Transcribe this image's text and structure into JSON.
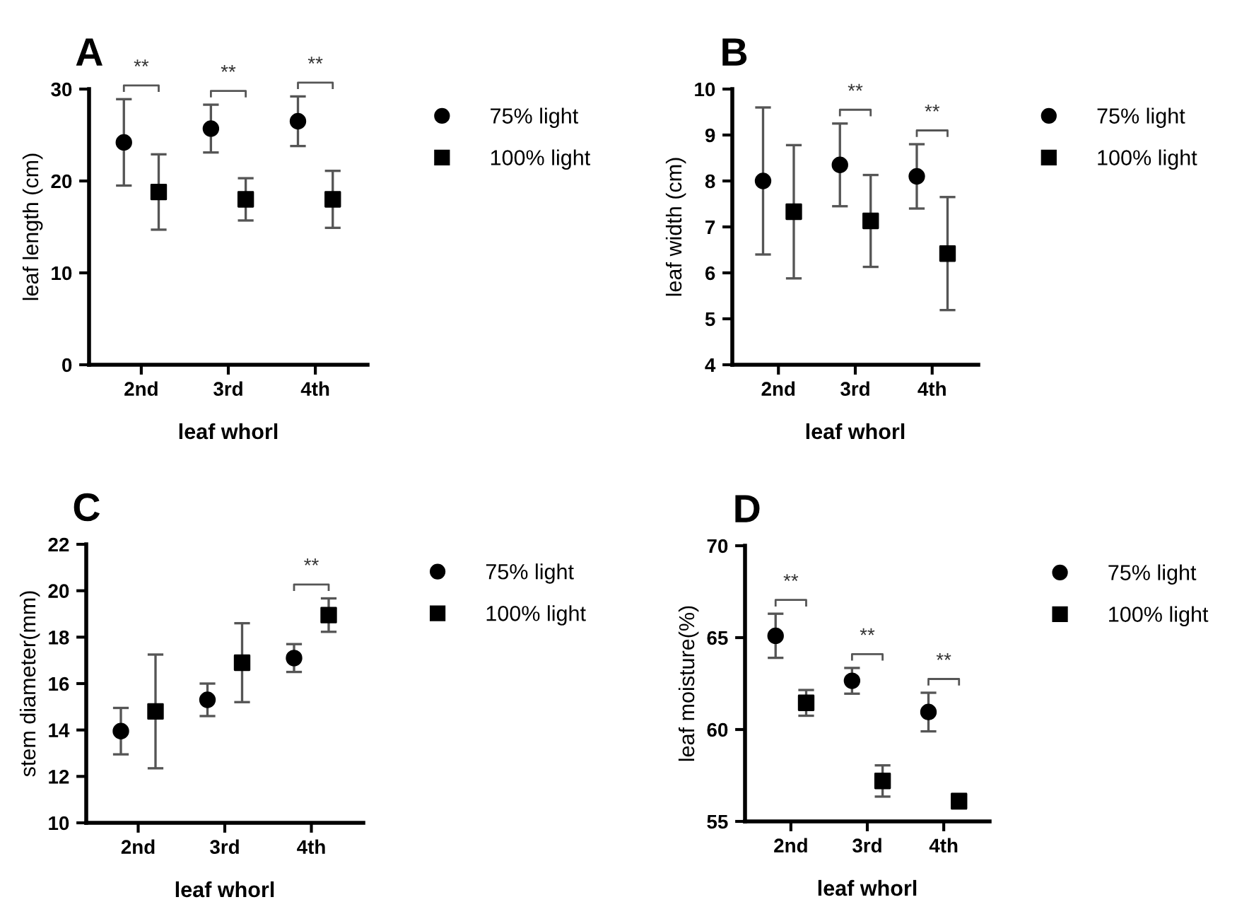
{
  "chart_data": [
    {
      "type": "scatter",
      "title": "A",
      "xlabel": "leaf whorl",
      "ylabel": "leaf length (cm)",
      "categories": [
        "2nd",
        "3rd",
        "4th"
      ],
      "ylim": [
        0,
        30
      ],
      "yticks": [
        0,
        10,
        20,
        30
      ],
      "legend": "right",
      "grid": false,
      "series": [
        {
          "name": "75% light",
          "color": "#000000",
          "marker": "circle",
          "values": [
            24.2,
            25.7,
            26.5
          ],
          "errors": [
            4.7,
            2.6,
            2.7
          ]
        },
        {
          "name": "100% light",
          "color": "#000000",
          "marker": "square",
          "values": [
            18.8,
            18.0,
            18.0
          ],
          "errors": [
            4.1,
            2.3,
            3.1
          ]
        }
      ],
      "annotations": [
        "**",
        "**",
        "**"
      ]
    },
    {
      "type": "scatter",
      "title": "B",
      "xlabel": "leaf whorl",
      "ylabel": "leaf width (cm)",
      "categories": [
        "2nd",
        "3rd",
        "4th"
      ],
      "ylim": [
        4,
        10
      ],
      "yticks": [
        4,
        5,
        6,
        7,
        8,
        9,
        10
      ],
      "legend": "right",
      "grid": false,
      "series": [
        {
          "name": "75% light",
          "color": "#000000",
          "marker": "circle",
          "values": [
            8.0,
            8.35,
            8.1
          ],
          "errors": [
            1.6,
            0.9,
            0.7
          ]
        },
        {
          "name": "100% light",
          "color": "#000000",
          "marker": "square",
          "values": [
            7.33,
            7.13,
            6.42
          ],
          "errors": [
            1.45,
            1.0,
            1.23
          ]
        }
      ],
      "annotations": [
        "**",
        "**"
      ]
    },
    {
      "type": "scatter",
      "title": "C",
      "xlabel": "leaf whorl",
      "ylabel": "stem diameter(mm)",
      "categories": [
        "2nd",
        "3rd",
        "4th"
      ],
      "ylim": [
        10,
        22
      ],
      "yticks": [
        10,
        12,
        14,
        16,
        18,
        20,
        22
      ],
      "legend": "right",
      "grid": false,
      "series": [
        {
          "name": "75% light",
          "color": "#000000",
          "marker": "circle",
          "values": [
            13.95,
            15.3,
            17.1
          ],
          "errors": [
            1.0,
            0.7,
            0.6
          ]
        },
        {
          "name": "100% light",
          "color": "#000000",
          "marker": "square",
          "values": [
            14.8,
            16.9,
            18.95
          ],
          "errors": [
            2.45,
            1.7,
            0.72
          ]
        }
      ],
      "annotations": [
        "**"
      ]
    },
    {
      "type": "scatter",
      "title": "D",
      "xlabel": "leaf whorl",
      "ylabel": "leaf moisture(%)",
      "categories": [
        "2nd",
        "3rd",
        "4th"
      ],
      "ylim": [
        55,
        70
      ],
      "yticks": [
        55,
        60,
        65,
        70
      ],
      "legend": "right",
      "grid": false,
      "series": [
        {
          "name": "75% light",
          "color": "#000000",
          "marker": "circle",
          "values": [
            65.1,
            62.65,
            60.95
          ],
          "errors": [
            1.2,
            0.7,
            1.05
          ]
        },
        {
          "name": "100% light",
          "color": "#000000",
          "marker": "square",
          "values": [
            61.45,
            57.2,
            56.1
          ],
          "errors": [
            0.7,
            0.85,
            0.4
          ]
        }
      ],
      "annotations": [
        "**",
        "**",
        "**"
      ]
    }
  ]
}
